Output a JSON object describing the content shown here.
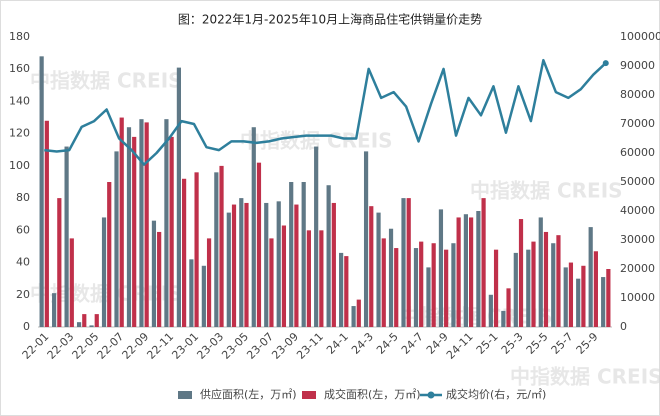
{
  "chart_data": {
    "type": "bar-line",
    "title": "图：2022年1月-2025年10月上海商品住宅供销量价走势",
    "watermark": "中指数据 CREIS",
    "categories": [
      "22-01",
      null,
      "22-03",
      null,
      "22-05",
      null,
      "22-07",
      null,
      "22-09",
      null,
      "22-11",
      null,
      "23-01",
      null,
      "23-03",
      null,
      "23-05",
      null,
      "23-07",
      null,
      "23-09",
      null,
      "23-11",
      null,
      "24-1",
      null,
      "24-3",
      null,
      "24-5",
      null,
      "24-7",
      null,
      "24-9",
      null,
      "24-11",
      null,
      "25-1",
      null,
      "25-3",
      null,
      "25-5",
      null,
      "25-7",
      null,
      "25-9",
      null
    ],
    "series": [
      {
        "name": "供应面积(左，万㎡)",
        "color": "#5f7886",
        "kind": "bar",
        "values": [
          168,
          21,
          112,
          3,
          1,
          68,
          109,
          124,
          129,
          66,
          129,
          161,
          42,
          38,
          96,
          71,
          80,
          124,
          77,
          78,
          90,
          90,
          112,
          88,
          46,
          13,
          109,
          71,
          61,
          80,
          49,
          37,
          73,
          52,
          70,
          72,
          20,
          10,
          46,
          48,
          68,
          52,
          37,
          30,
          62,
          31
        ]
      },
      {
        "name": "成交面积(左，万㎡)",
        "color": "#c0304a",
        "kind": "bar",
        "values": [
          128,
          80,
          55,
          8,
          8,
          90,
          130,
          118,
          127,
          59,
          118,
          92,
          96,
          55,
          100,
          76,
          77,
          102,
          55,
          63,
          76,
          60,
          60,
          77,
          44,
          17,
          75,
          55,
          49,
          80,
          53,
          52,
          48,
          68,
          68,
          80,
          48,
          24,
          67,
          53,
          59,
          57,
          40,
          38,
          47,
          36
        ]
      },
      {
        "name": "成交均价(右，元/㎡)",
        "color": "#2e7f9c",
        "kind": "line",
        "axis": "y2",
        "values": [
          61000,
          60500,
          61000,
          69000,
          71000,
          75000,
          65000,
          61000,
          56000,
          60000,
          65000,
          71000,
          70000,
          62000,
          61000,
          64000,
          64000,
          63500,
          64000,
          65000,
          65500,
          66000,
          66000,
          66000,
          65000,
          65000,
          89000,
          79000,
          81000,
          76000,
          64000,
          77000,
          89000,
          66000,
          79000,
          73000,
          83000,
          67000,
          83000,
          71000,
          92000,
          81000,
          79000,
          82000,
          87000,
          91000
        ]
      }
    ],
    "ylim": [
      0,
      180
    ],
    "yticks": [
      0,
      20,
      40,
      60,
      80,
      100,
      120,
      140,
      160,
      180
    ],
    "y2lim": [
      0,
      100000
    ],
    "y2ticks": [
      0,
      10000,
      20000,
      30000,
      40000,
      50000,
      60000,
      70000,
      80000,
      90000,
      100000
    ],
    "legend": "bottom"
  }
}
